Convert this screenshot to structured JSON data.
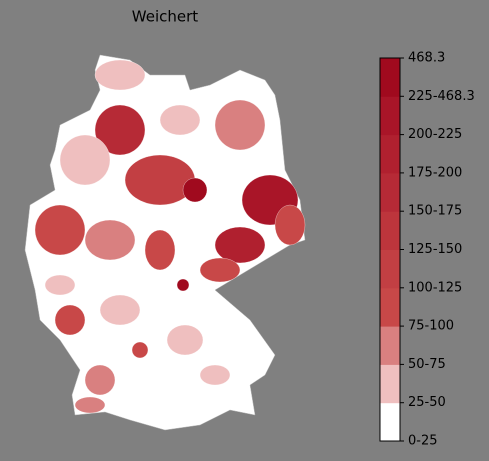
{
  "title": "Weichert",
  "colorbar": {
    "labels": [
      "0-25",
      "25-50",
      "50-75",
      "75-100",
      "100-125",
      "125-150",
      "150-175",
      "175-200",
      "200-225",
      "225-468.3",
      "468.3"
    ],
    "colors": [
      "#ffffff",
      "#efbfbf",
      "#d98080",
      "#c84848",
      "#c23f43",
      "#bd353c",
      "#b62a36",
      "#b0202f",
      "#a91528",
      "#a00a1e"
    ]
  }
}
